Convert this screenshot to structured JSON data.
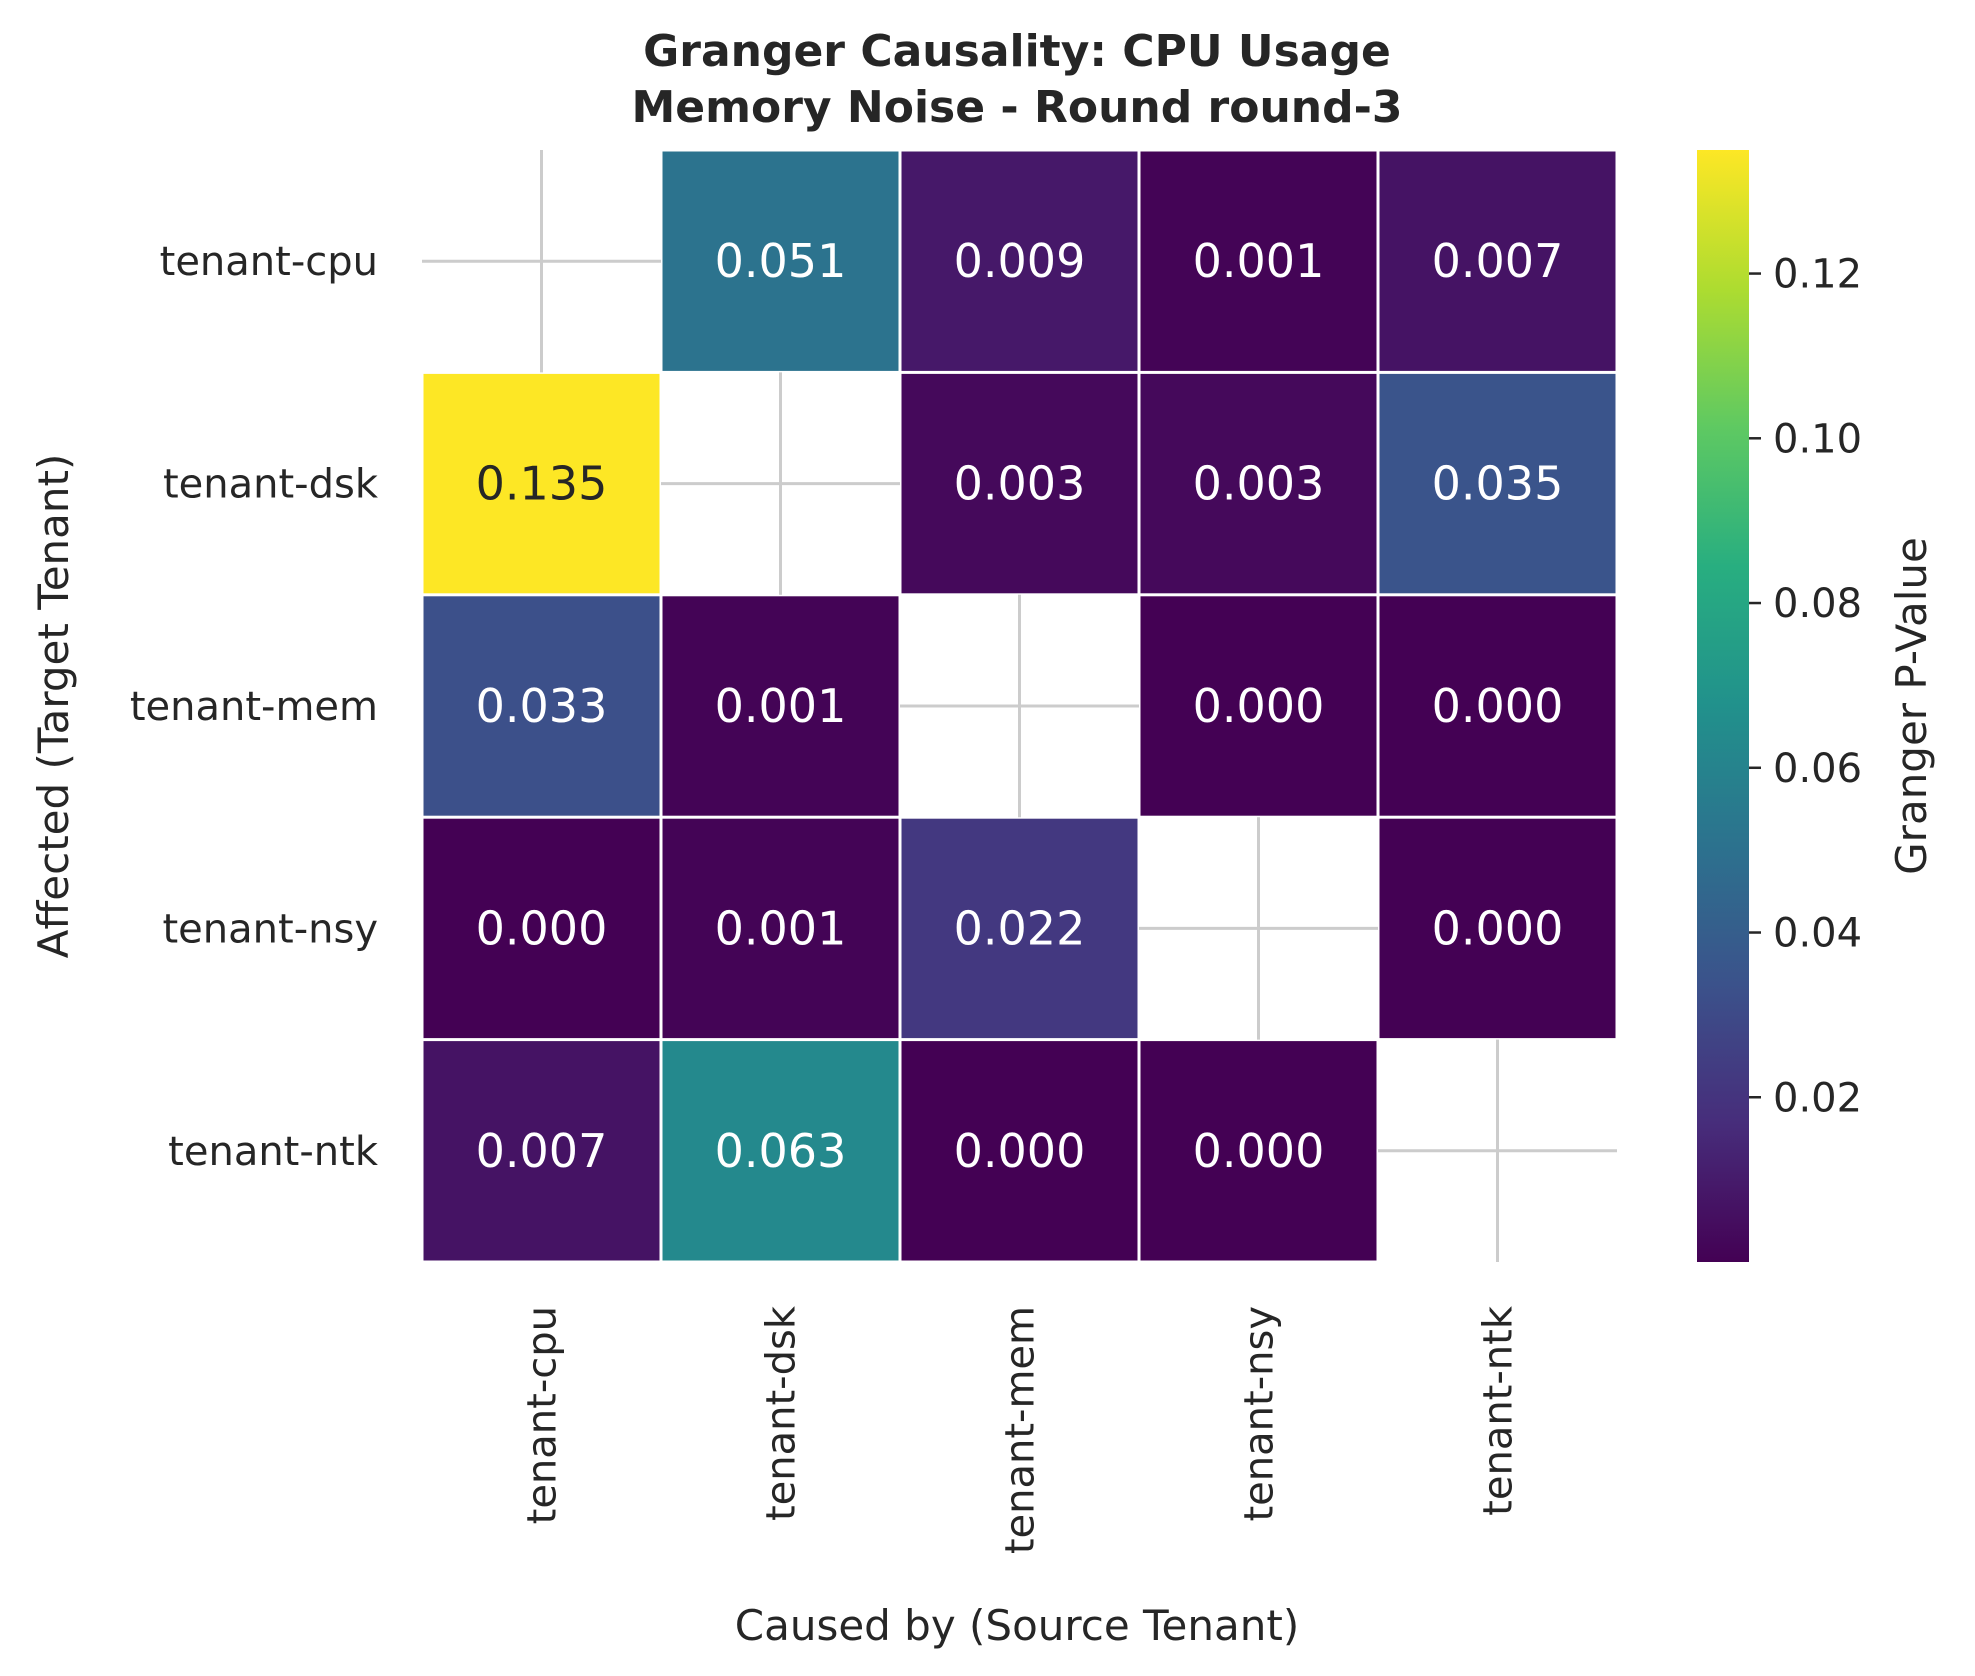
{
  "chart_data": {
    "type": "heatmap",
    "title": [
      "Granger Causality: CPU Usage",
      "Memory Noise - Round round-3"
    ],
    "xlabel": "Caused by (Source Tenant)",
    "ylabel": "Affected (Target Tenant)",
    "x_categories": [
      "tenant-cpu",
      "tenant-dsk",
      "tenant-mem",
      "tenant-nsy",
      "tenant-ntk"
    ],
    "y_categories": [
      "tenant-cpu",
      "tenant-dsk",
      "tenant-mem",
      "tenant-nsy",
      "tenant-ntk"
    ],
    "values": [
      [
        null,
        0.051,
        0.009,
        0.001,
        0.007
      ],
      [
        0.135,
        null,
        0.003,
        0.003,
        0.035
      ],
      [
        0.033,
        0.001,
        null,
        0.0,
        0.0
      ],
      [
        0.0,
        0.001,
        0.022,
        null,
        0.0
      ],
      [
        0.007,
        0.063,
        0.0,
        0.0,
        null
      ]
    ],
    "value_labels": [
      [
        "",
        "0.051",
        "0.009",
        "0.001",
        "0.007"
      ],
      [
        "0.135",
        "",
        "0.003",
        "0.003",
        "0.035"
      ],
      [
        "0.033",
        "0.001",
        "",
        "0.000",
        "0.000"
      ],
      [
        "0.000",
        "0.001",
        "0.022",
        "",
        "0.000"
      ],
      [
        "0.007",
        "0.063",
        "0.000",
        "0.000",
        ""
      ]
    ],
    "colormap": "viridis",
    "colorbar": {
      "label": "Granger P-Value",
      "range": [
        0.0,
        0.135
      ],
      "ticks": [
        0.02,
        0.04,
        0.06,
        0.08,
        0.1,
        0.12
      ],
      "tick_labels": [
        "0.02",
        "0.04",
        "0.06",
        "0.08",
        "0.10",
        "0.12"
      ]
    },
    "diagonal": "masked"
  }
}
